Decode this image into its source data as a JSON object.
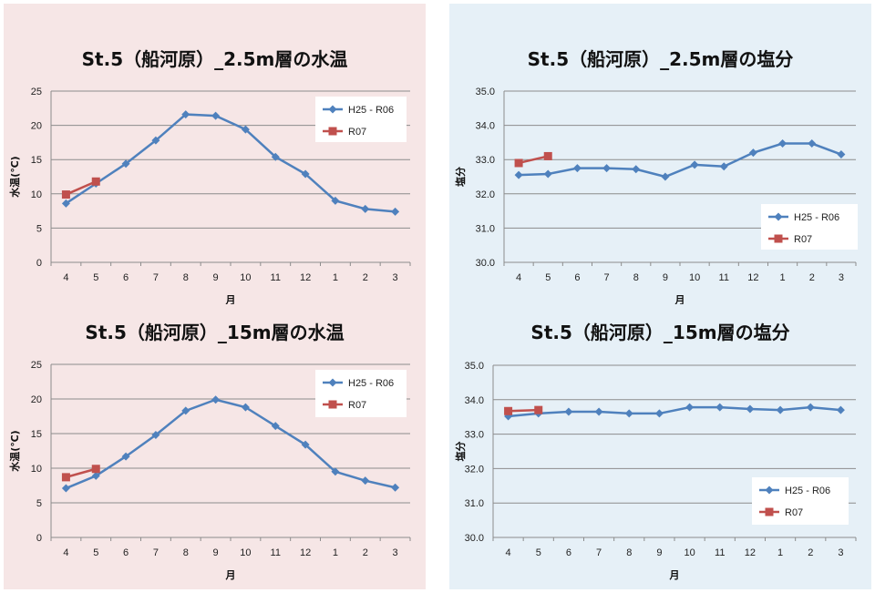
{
  "chart_data": [
    {
      "type": "line",
      "title": "St.5（船河原）_2.5m層の水温",
      "xlabel": "月",
      "ylabel": "水温(℃)",
      "categories": [
        "4",
        "5",
        "6",
        "7",
        "8",
        "9",
        "10",
        "11",
        "12",
        "1",
        "2",
        "3"
      ],
      "ylim": [
        0,
        25
      ],
      "yticks": [
        "0",
        "5",
        "10",
        "15",
        "20",
        "25"
      ],
      "grid": true,
      "legend_position": "top-right",
      "series": [
        {
          "name": "H25 - R06",
          "color": "#4f81bd",
          "marker": "diamond",
          "values": [
            8.6,
            11.5,
            14.4,
            17.8,
            21.6,
            21.4,
            19.4,
            15.4,
            12.9,
            9.0,
            7.8,
            7.4
          ]
        },
        {
          "name": "R07",
          "color": "#c0504d",
          "marker": "square",
          "values": [
            9.9,
            11.8,
            null,
            null,
            null,
            null,
            null,
            null,
            null,
            null,
            null,
            null
          ]
        }
      ]
    },
    {
      "type": "line",
      "title": "St.5（船河原）_2.5m層の塩分",
      "xlabel": "月",
      "ylabel": "塩分",
      "categories": [
        "4",
        "5",
        "6",
        "7",
        "8",
        "9",
        "10",
        "11",
        "12",
        "1",
        "2",
        "3"
      ],
      "ylim": [
        30.0,
        35.0
      ],
      "yticks": [
        "30.0",
        "31.0",
        "32.0",
        "33.0",
        "34.0",
        "35.0"
      ],
      "grid": true,
      "legend_position": "bottom-right",
      "series": [
        {
          "name": "H25 - R06",
          "color": "#4f81bd",
          "marker": "diamond",
          "values": [
            32.55,
            32.58,
            32.75,
            32.75,
            32.72,
            32.5,
            32.85,
            32.8,
            33.2,
            33.47,
            33.47,
            33.15
          ]
        },
        {
          "name": "R07",
          "color": "#c0504d",
          "marker": "square",
          "values": [
            32.9,
            33.1,
            null,
            null,
            null,
            null,
            null,
            null,
            null,
            null,
            null,
            null
          ]
        }
      ]
    },
    {
      "type": "line",
      "title": "St.5（船河原）_15m層の水温",
      "xlabel": "月",
      "ylabel": "水温(℃)",
      "categories": [
        "4",
        "5",
        "6",
        "7",
        "8",
        "9",
        "10",
        "11",
        "12",
        "1",
        "2",
        "3"
      ],
      "ylim": [
        0,
        25
      ],
      "yticks": [
        "0",
        "5",
        "10",
        "15",
        "20",
        "25"
      ],
      "grid": true,
      "legend_position": "top-right",
      "series": [
        {
          "name": "H25 - R06",
          "color": "#4f81bd",
          "marker": "diamond",
          "values": [
            7.1,
            8.9,
            11.7,
            14.8,
            18.3,
            19.9,
            18.8,
            16.1,
            13.4,
            9.5,
            8.2,
            7.2
          ]
        },
        {
          "name": "R07",
          "color": "#c0504d",
          "marker": "square",
          "values": [
            8.7,
            9.9,
            null,
            null,
            null,
            null,
            null,
            null,
            null,
            null,
            null,
            null
          ]
        }
      ]
    },
    {
      "type": "line",
      "title": "St.5（船河原）_15m層の塩分",
      "xlabel": "月",
      "ylabel": "塩分",
      "categories": [
        "4",
        "5",
        "6",
        "7",
        "8",
        "9",
        "10",
        "11",
        "12",
        "1",
        "2",
        "3"
      ],
      "ylim": [
        30.0,
        35.0
      ],
      "yticks": [
        "30.0",
        "31.0",
        "32.0",
        "33.0",
        "34.0",
        "35.0"
      ],
      "grid": true,
      "legend_position": "bottom-right",
      "series": [
        {
          "name": "H25 - R06",
          "color": "#4f81bd",
          "marker": "diamond",
          "values": [
            33.52,
            33.6,
            33.65,
            33.65,
            33.6,
            33.6,
            33.78,
            33.78,
            33.73,
            33.7,
            33.78,
            33.7
          ]
        },
        {
          "name": "R07",
          "color": "#c0504d",
          "marker": "square",
          "values": [
            33.67,
            33.7,
            null,
            null,
            null,
            null,
            null,
            null,
            null,
            null,
            null,
            null
          ]
        }
      ]
    }
  ]
}
